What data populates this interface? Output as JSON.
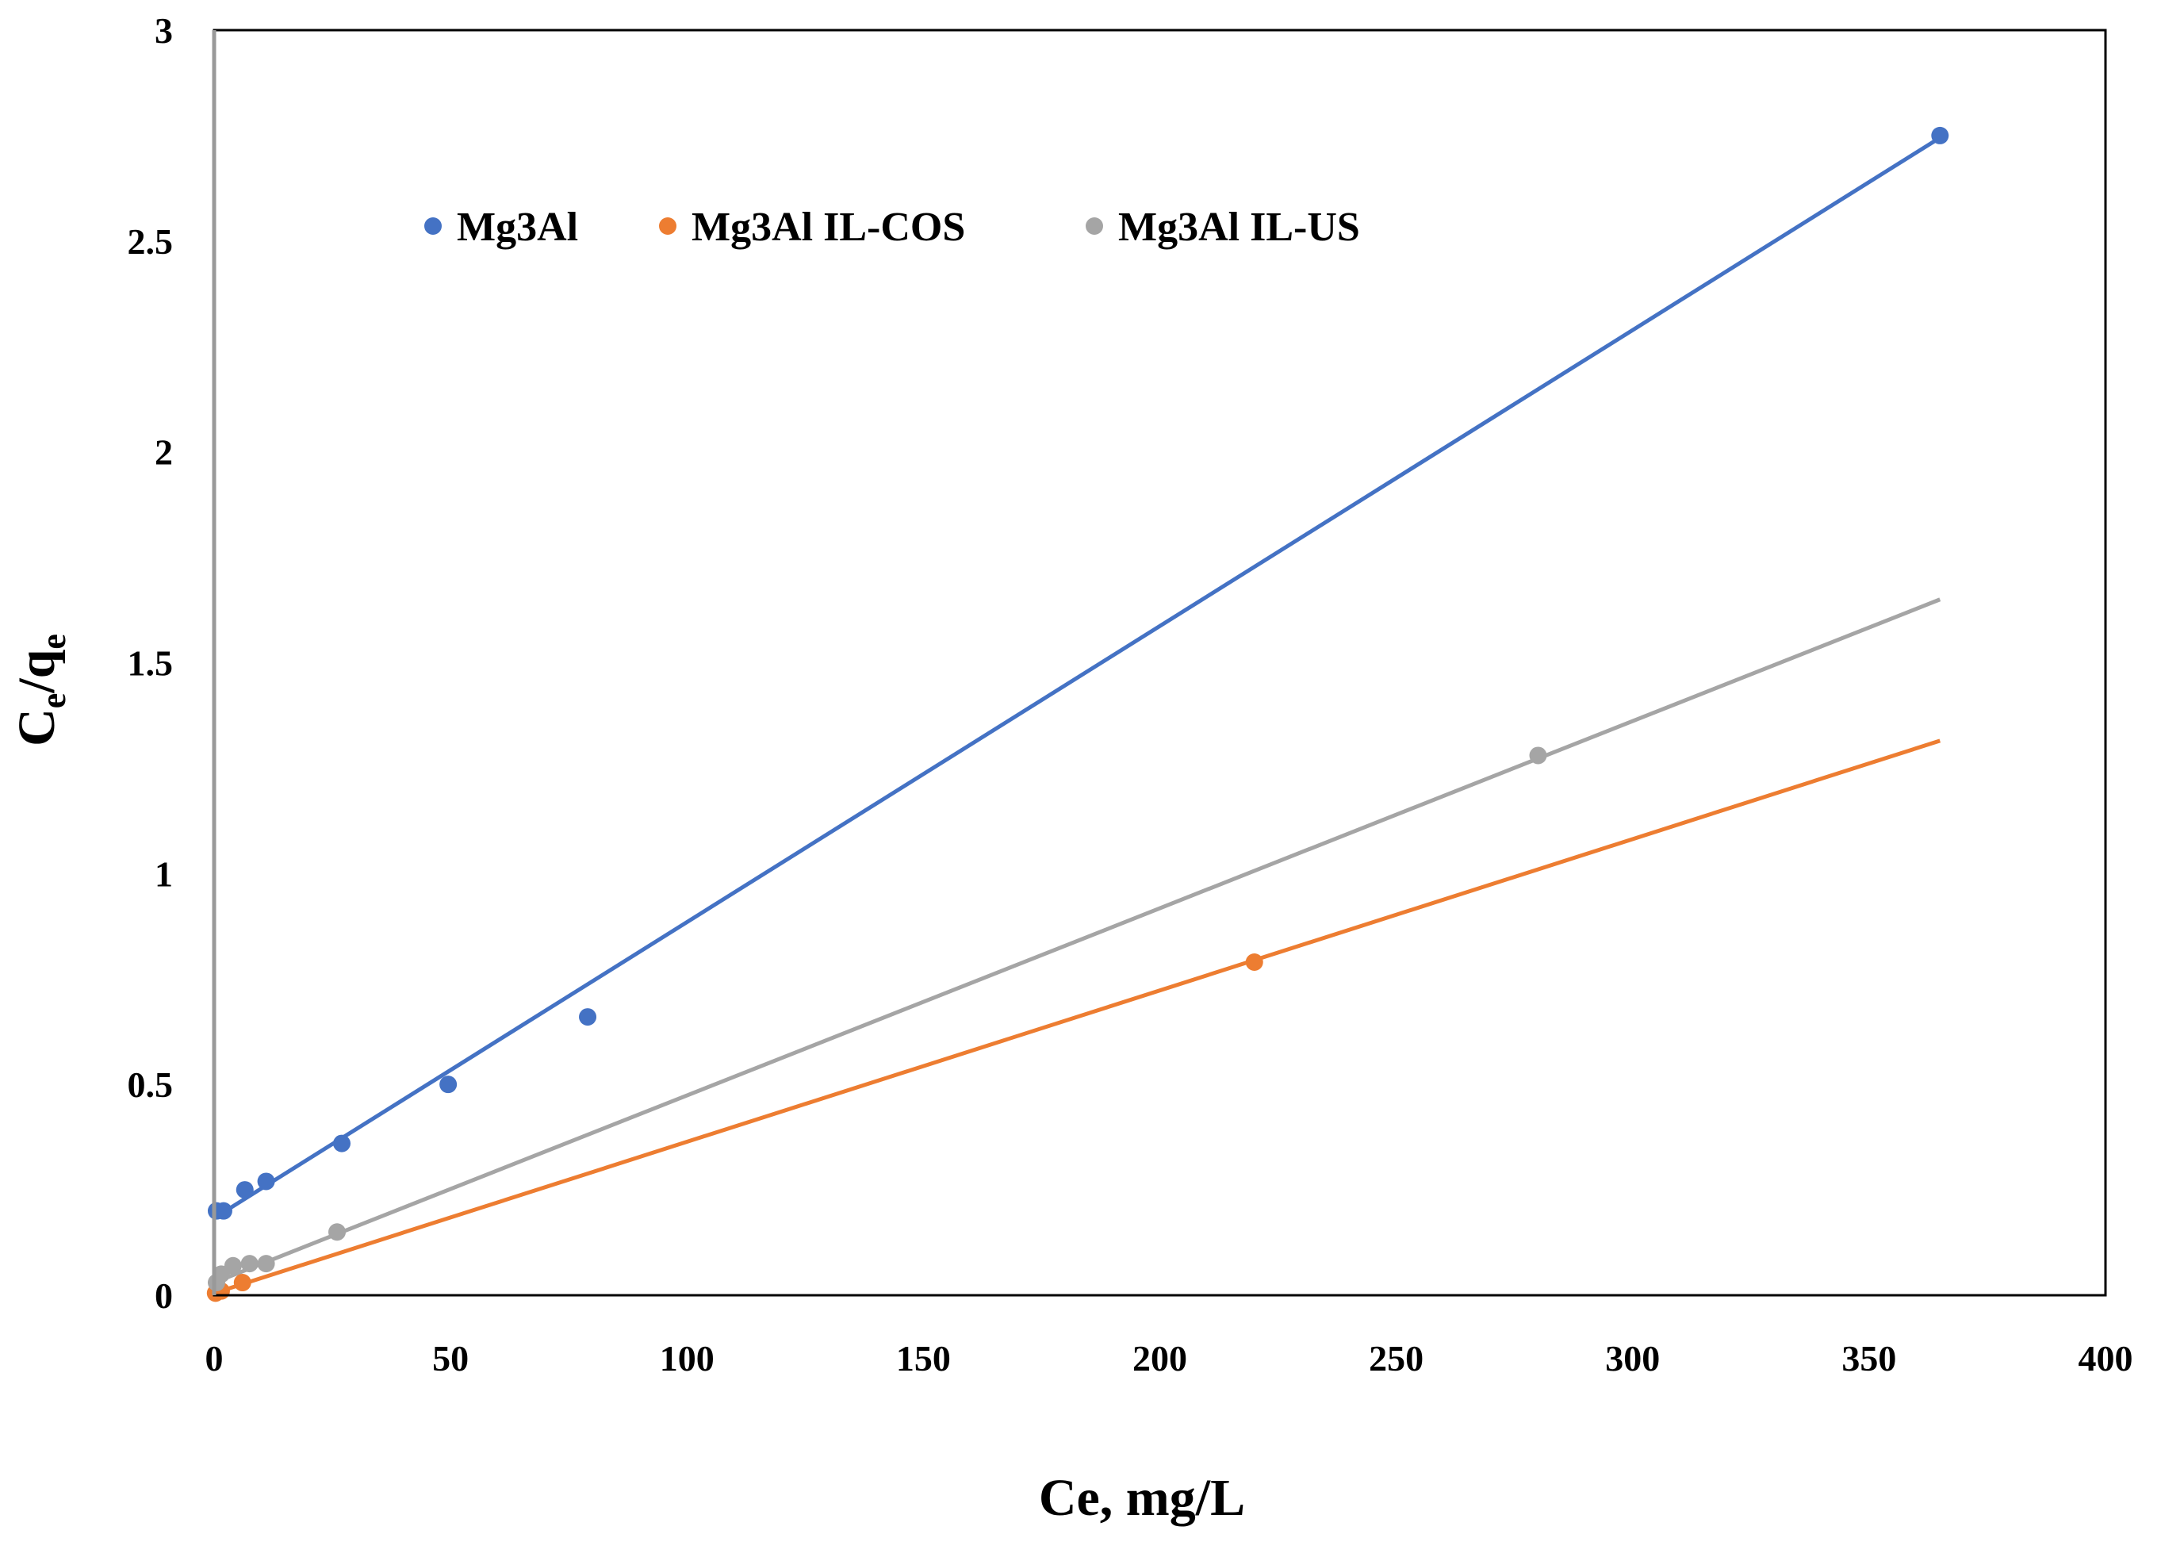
{
  "chart_data": {
    "type": "scatter",
    "title": "",
    "xlabel": "Ce, mg/L",
    "ylabel": {
      "main": "C",
      "sub1": "e",
      "mid": "/q",
      "sub2": "e"
    },
    "xlim": [
      0,
      400
    ],
    "ylim": [
      0,
      3
    ],
    "xticks": [
      0,
      50,
      100,
      150,
      200,
      250,
      300,
      350,
      400
    ],
    "yticks": [
      0,
      0.5,
      1,
      1.5,
      2,
      2.5,
      3
    ],
    "xtick_labels": [
      "0",
      "50",
      "100",
      "150",
      "200",
      "250",
      "300",
      "350",
      "400"
    ],
    "ytick_labels": [
      "0",
      "0.5",
      "1",
      "1.5",
      "2",
      "2.5",
      "3"
    ],
    "grid": false,
    "legend_position": "top-left",
    "series": [
      {
        "name": "Mg3Al",
        "color": "#4472C4",
        "points": [
          [
            0.5,
            0.2
          ],
          [
            2,
            0.2
          ],
          [
            6.5,
            0.25
          ],
          [
            11,
            0.27
          ],
          [
            27,
            0.36
          ],
          [
            49.5,
            0.5
          ],
          [
            79,
            0.66
          ],
          [
            365,
            2.75
          ]
        ],
        "trendline": [
          [
            0,
            0.183
          ],
          [
            365,
            2.745
          ]
        ]
      },
      {
        "name": "Mg3Al IL-COS",
        "color": "#ED7D31",
        "points": [
          [
            0.3,
            0.005
          ],
          [
            1.5,
            0.01
          ],
          [
            6,
            0.03
          ],
          [
            220,
            0.79
          ]
        ],
        "trendline": [
          [
            0,
            0.005
          ],
          [
            365,
            1.315
          ]
        ]
      },
      {
        "name": "Mg3Al IL-US",
        "color": "#A5A5A5",
        "points": [
          [
            0.5,
            0.03
          ],
          [
            1.5,
            0.05
          ],
          [
            4,
            0.07
          ],
          [
            7.5,
            0.075
          ],
          [
            11,
            0.075
          ],
          [
            26,
            0.15
          ],
          [
            280,
            1.28
          ]
        ],
        "trendline": [
          [
            0,
            0.03
          ],
          [
            365,
            1.65
          ]
        ]
      }
    ]
  }
}
